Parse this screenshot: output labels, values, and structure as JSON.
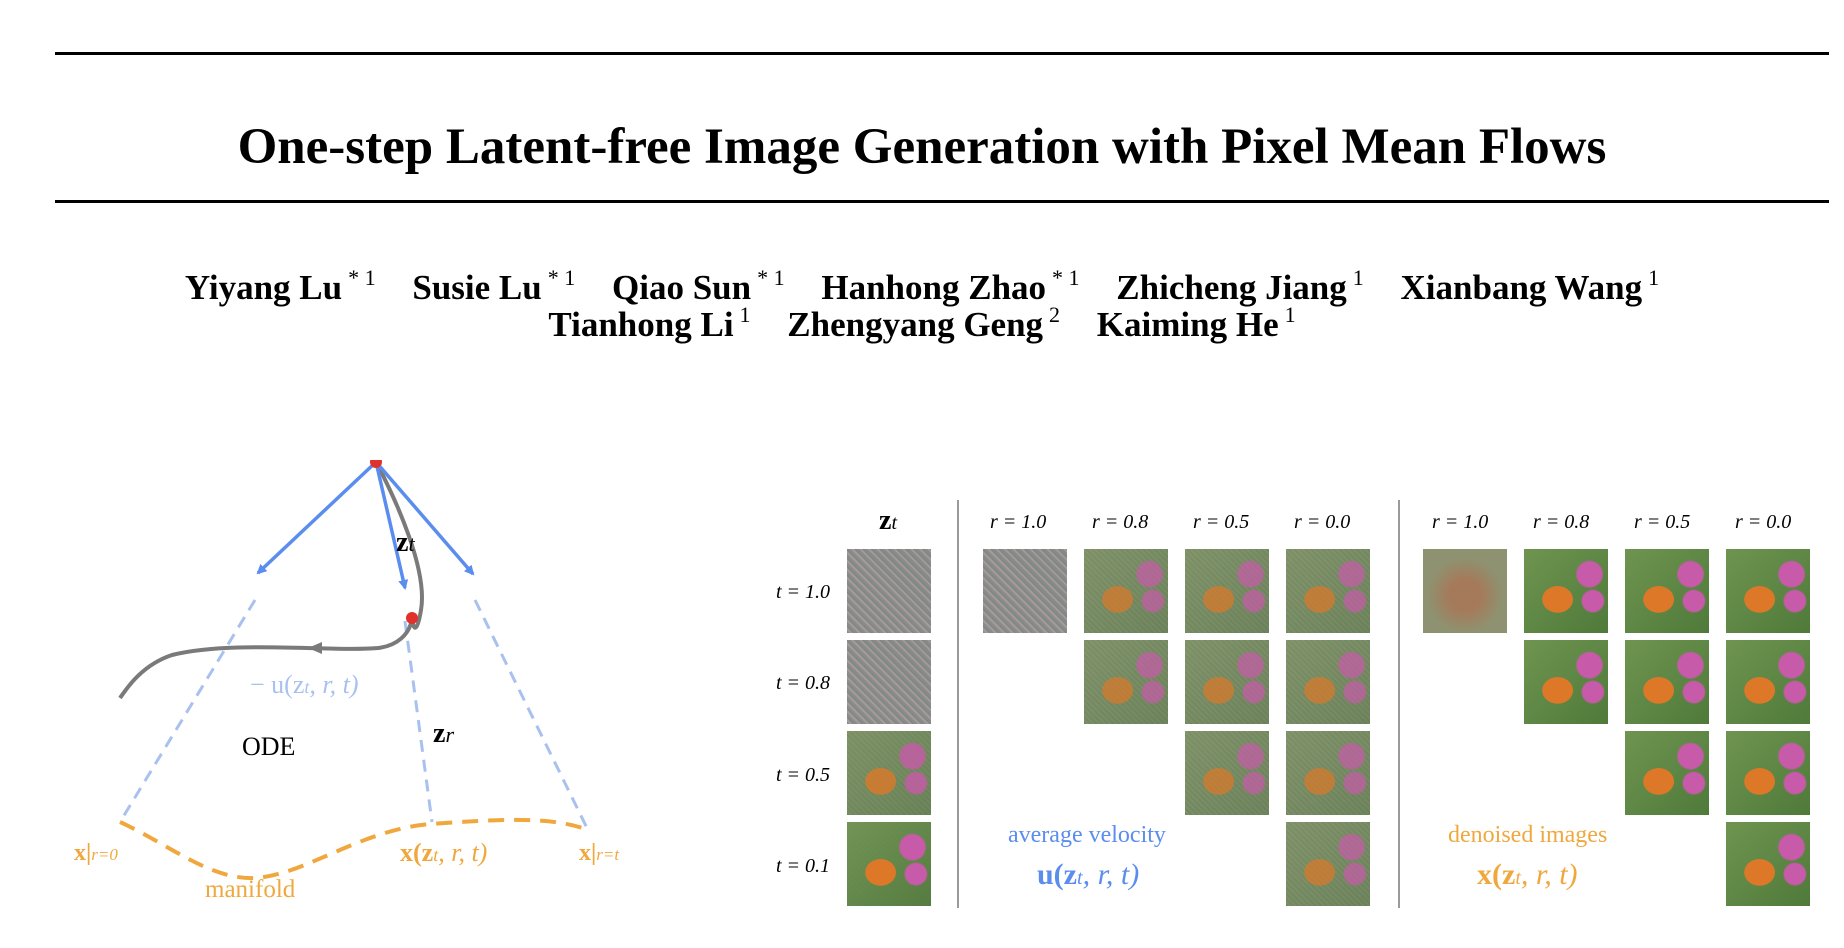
{
  "title": "One-step Latent-free Image Generation with Pixel Mean Flows",
  "authors_line1": [
    {
      "name": "Yiyang Lu",
      "sup": "* 1"
    },
    {
      "name": "Susie Lu",
      "sup": "* 1"
    },
    {
      "name": "Qiao Sun",
      "sup": "* 1"
    },
    {
      "name": "Hanhong Zhao",
      "sup": "* 1"
    },
    {
      "name": "Zhicheng Jiang",
      "sup": "1"
    },
    {
      "name": "Xianbang Wang",
      "sup": "1"
    }
  ],
  "authors_line2": [
    {
      "name": "Tianhong Li",
      "sup": "1"
    },
    {
      "name": "Zhengyang Geng",
      "sup": "2"
    },
    {
      "name": "Kaiming He",
      "sup": "1"
    }
  ],
  "diagram": {
    "z_t": "z",
    "z_t_sub": "t",
    "z_r": "z",
    "z_r_sub": "r",
    "neg_u": "− u(z",
    "neg_u_rest": ", r, t)",
    "ode": "ODE",
    "x_r0": "x|",
    "x_r0_sub": "r=0",
    "x_rt": "x|",
    "x_rt_sub": "r=t",
    "x_mid": "x(z",
    "x_mid_rest": ", r, t)",
    "manifold": "manifold",
    "colors": {
      "blue": "#5b8def",
      "light_blue": "#a9c1ee",
      "orange": "#f0a83e",
      "gray": "#7a7a7a",
      "red": "#e0312b"
    }
  },
  "grid": {
    "zt_header": "z",
    "zt_header_sub": "t",
    "t_labels": [
      "t = 1.0",
      "t = 0.8",
      "t = 0.5",
      "t = 0.1"
    ],
    "r_labels": [
      "r = 1.0",
      "r = 0.8",
      "r = 0.5",
      "r = 0.0"
    ],
    "velocity_caption": "average velocity",
    "velocity_formula": "u(z",
    "velocity_formula_rest": ", r, t)",
    "denoised_caption": "denoised images",
    "denoised_formula": "x(z",
    "denoised_formula_rest": ", r, t)"
  }
}
